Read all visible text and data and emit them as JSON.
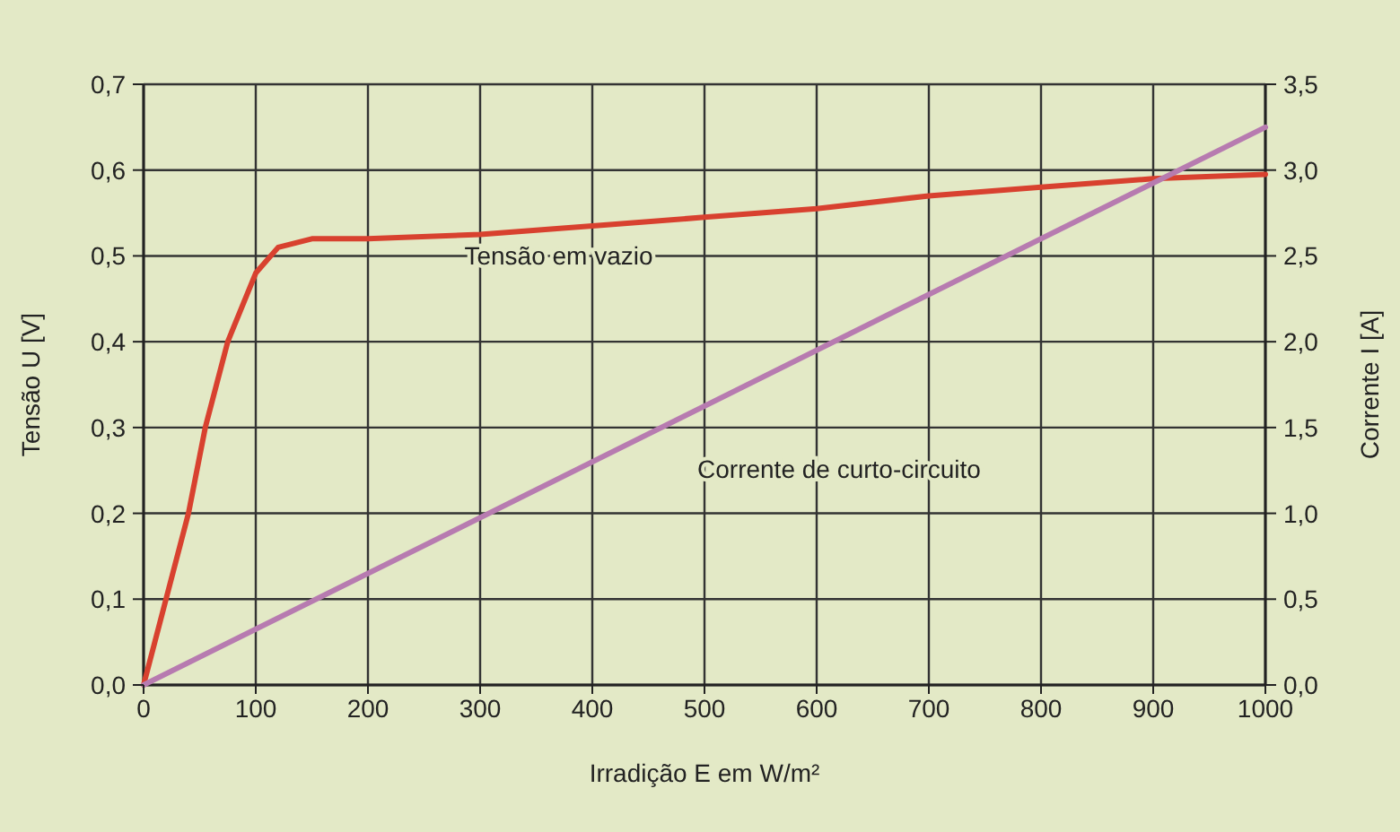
{
  "chart_data": {
    "type": "line",
    "xlabel": "Irradição E em W/m²",
    "ylabel": "Tensão U [V]",
    "y2label": "Corrente I [A]",
    "xlim": [
      0,
      1000
    ],
    "xticks": [
      0,
      100,
      200,
      300,
      400,
      500,
      600,
      700,
      800,
      900,
      1000
    ],
    "ylim": [
      0,
      0.7
    ],
    "yticks": [
      {
        "value": 0,
        "label": "0,0"
      },
      {
        "value": 0.1,
        "label": "0,1"
      },
      {
        "value": 0.2,
        "label": "0,2"
      },
      {
        "value": 0.3,
        "label": "0,3"
      },
      {
        "value": 0.4,
        "label": "0,4"
      },
      {
        "value": 0.5,
        "label": "0,5"
      },
      {
        "value": 0.6,
        "label": "0,6"
      },
      {
        "value": 0.7,
        "label": "0,7"
      }
    ],
    "y2lim": [
      0,
      3.5
    ],
    "y2ticks": [
      {
        "value": 0,
        "label": "0,0"
      },
      {
        "value": 0.5,
        "label": "0,5"
      },
      {
        "value": 1,
        "label": "1,0"
      },
      {
        "value": 1.5,
        "label": "1,5"
      },
      {
        "value": 2,
        "label": "2,0"
      },
      {
        "value": 2.5,
        "label": "2,5"
      },
      {
        "value": 3,
        "label": "3,0"
      },
      {
        "value": 3.5,
        "label": "3,5"
      }
    ],
    "grid": true,
    "series": [
      {
        "name": "Tensão em vazio",
        "color": "#d8412f",
        "x": [
          0,
          20,
          40,
          55,
          75,
          100,
          120,
          150,
          200,
          300,
          400,
          500,
          600,
          700,
          800,
          900,
          1000
        ],
        "values": [
          0,
          0.1,
          0.2,
          0.3,
          0.4,
          0.48,
          0.51,
          0.52,
          0.52,
          0.525,
          0.535,
          0.545,
          0.555,
          0.57,
          0.58,
          0.59,
          0.595
        ]
      },
      {
        "name": "Corrente de curto-circuito",
        "color": "#b77bb0",
        "axis": "y2",
        "x": [
          0,
          1000
        ],
        "values": [
          0,
          3.25
        ]
      }
    ]
  }
}
